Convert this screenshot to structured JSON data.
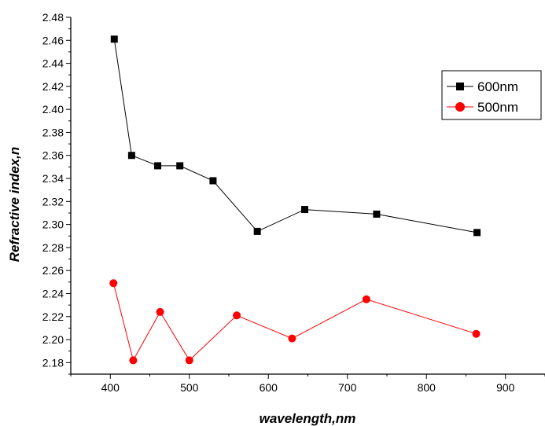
{
  "chart_data": {
    "type": "line",
    "title": "",
    "xlabel": "wavelength,nm",
    "ylabel": "Refractive index,n",
    "xlim": [
      350,
      950
    ],
    "ylim": [
      2.17,
      2.48
    ],
    "x_ticks": [
      400,
      500,
      600,
      700,
      800,
      900
    ],
    "y_ticks": [
      2.18,
      2.2,
      2.22,
      2.24,
      2.26,
      2.28,
      2.3,
      2.32,
      2.34,
      2.36,
      2.38,
      2.4,
      2.42,
      2.44,
      2.46,
      2.48
    ],
    "x_tick_labels": [
      "400",
      "500",
      "600",
      "700",
      "800",
      "900"
    ],
    "y_tick_labels": [
      "2.18",
      "2.20",
      "2.22",
      "2.24",
      "2.26",
      "2.28",
      "2.30",
      "2.32",
      "2.34",
      "2.36",
      "2.38",
      "2.40",
      "2.42",
      "2.44",
      "2.46",
      "2.48"
    ],
    "grid": false,
    "legend_position": "top-right",
    "series": [
      {
        "name": "600nm",
        "color": "#000000",
        "marker": "square",
        "points": [
          {
            "x": 405,
            "y": 2.461
          },
          {
            "x": 427,
            "y": 2.36
          },
          {
            "x": 460,
            "y": 2.351
          },
          {
            "x": 488,
            "y": 2.351
          },
          {
            "x": 530,
            "y": 2.338
          },
          {
            "x": 586,
            "y": 2.294
          },
          {
            "x": 646,
            "y": 2.313
          },
          {
            "x": 737,
            "y": 2.309
          },
          {
            "x": 864,
            "y": 2.293
          }
        ]
      },
      {
        "name": "500nm",
        "color": "#ff0000",
        "marker": "circle",
        "points": [
          {
            "x": 404,
            "y": 2.249
          },
          {
            "x": 429,
            "y": 2.182
          },
          {
            "x": 463,
            "y": 2.224
          },
          {
            "x": 500,
            "y": 2.182
          },
          {
            "x": 560,
            "y": 2.221
          },
          {
            "x": 630,
            "y": 2.201
          },
          {
            "x": 724,
            "y": 2.235
          },
          {
            "x": 863,
            "y": 2.205
          }
        ]
      }
    ]
  }
}
